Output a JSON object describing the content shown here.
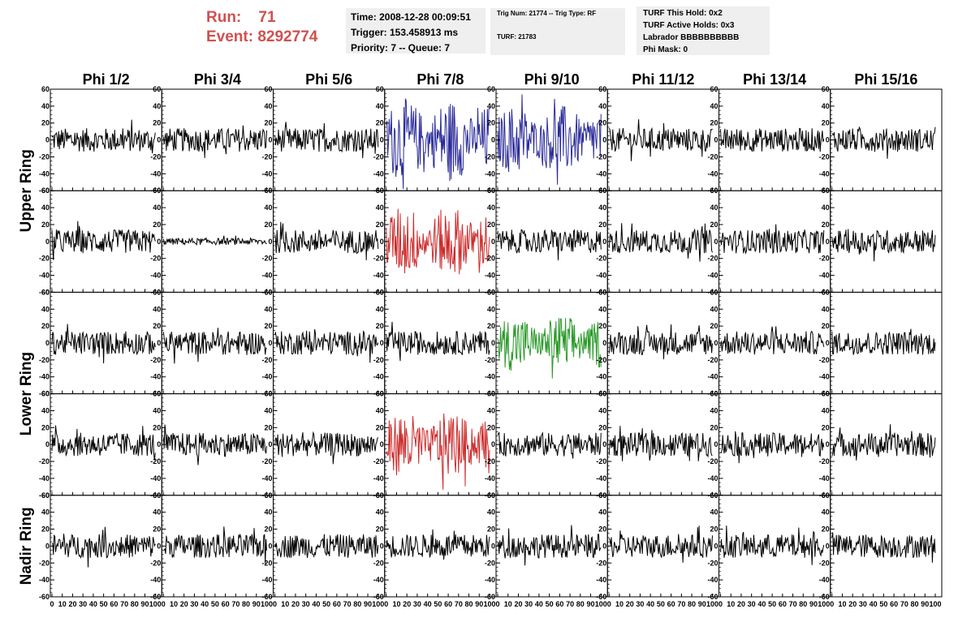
{
  "header": {
    "run_label": "Run:",
    "run_value": "71",
    "event_label": "Event:",
    "event_value": "8292774",
    "time": "Time: 2008-12-28 00:09:51",
    "trigger": "Trigger: 153.458913 ms",
    "priority": "Priority: 7 -- Queue: 7",
    "trig_num": "Trig Num: 21774 -- Trig Type: RF",
    "turf": "TURF: 21783",
    "turf_this_hold": "TURF This Hold: 0x2",
    "turf_active_holds": "TURF Active Holds: 0x3",
    "labrador": "Labrador BBBBBBBBBB",
    "phi_mask": "Phi Mask: 0"
  },
  "chart_data": {
    "type": "line",
    "columns": [
      "Phi 1/2",
      "Phi 3/4",
      "Phi 5/6",
      "Phi 7/8",
      "Phi 9/10",
      "Phi 11/12",
      "Phi 13/14",
      "Phi 15/16"
    ],
    "ring_labels": [
      "Upper Ring",
      "Lower Ring",
      "Nadir Ring"
    ],
    "rows": 5,
    "ylim": [
      -60,
      60
    ],
    "xlim": [
      0,
      100
    ],
    "yticks": [
      "60",
      "40",
      "20",
      "0",
      "-20",
      "-40",
      "-60"
    ],
    "xticks": [
      "0",
      "10",
      "20",
      "30",
      "40",
      "50",
      "60",
      "70",
      "80",
      "90",
      "100"
    ],
    "highlights": [
      {
        "row": 0,
        "col": 3,
        "color": "#2b2b9a",
        "amplitude": 38
      },
      {
        "row": 0,
        "col": 4,
        "color": "#2b2b9a",
        "amplitude": 32
      },
      {
        "row": 1,
        "col": 3,
        "color": "#cc2a2a",
        "amplitude": 33
      },
      {
        "row": 2,
        "col": 4,
        "color": "#2a9a2a",
        "amplitude": 26
      },
      {
        "row": 3,
        "col": 3,
        "color": "#cc2a2a",
        "amplitude": 30
      }
    ],
    "quiet_panels": [
      {
        "row": 1,
        "col": 1,
        "amplitude": 4
      }
    ],
    "default_color": "#000000",
    "default_amplitude": 14
  }
}
